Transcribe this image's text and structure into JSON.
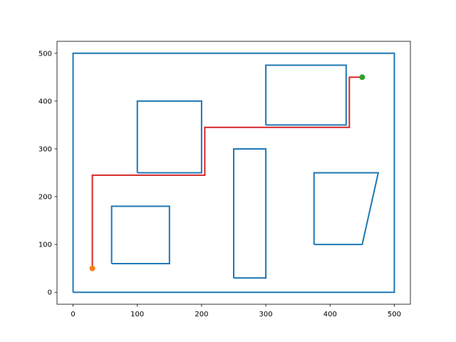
{
  "chart_data": {
    "type": "line",
    "xlim": [
      -25,
      525
    ],
    "ylim": [
      -25,
      525
    ],
    "xticks": [
      0,
      100,
      200,
      300,
      400,
      500
    ],
    "yticks": [
      0,
      100,
      200,
      300,
      400,
      500
    ],
    "grid": false,
    "series": [
      {
        "color": "#1f77b4",
        "x": [
          0,
          500,
          500,
          0,
          0
        ],
        "values": [
          0,
          0,
          500,
          500,
          0
        ]
      },
      {
        "color": "#1f77b4",
        "x": [
          100,
          200,
          200,
          100,
          100
        ],
        "values": [
          250,
          250,
          400,
          400,
          250
        ]
      },
      {
        "color": "#1f77b4",
        "x": [
          60,
          150,
          150,
          60,
          60
        ],
        "values": [
          60,
          60,
          180,
          180,
          60
        ]
      },
      {
        "color": "#1f77b4",
        "x": [
          250,
          300,
          300,
          250,
          250
        ],
        "values": [
          30,
          30,
          300,
          300,
          30
        ]
      },
      {
        "color": "#1f77b4",
        "x": [
          300,
          425,
          425,
          300,
          300
        ],
        "values": [
          350,
          350,
          475,
          475,
          350
        ]
      },
      {
        "color": "#1f77b4",
        "x": [
          375,
          450,
          475,
          375,
          375
        ],
        "values": [
          100,
          100,
          250,
          250,
          100
        ]
      },
      {
        "color": "#d62728",
        "x": [
          30,
          30,
          205,
          205,
          430,
          430,
          450
        ],
        "values": [
          50,
          245,
          245,
          345,
          345,
          450,
          450
        ]
      },
      {
        "color": "#ff7f0e",
        "x": [
          30
        ],
        "values": [
          50
        ]
      },
      {
        "color": "#2ca02c",
        "x": [
          450
        ],
        "values": [
          450
        ]
      }
    ]
  }
}
